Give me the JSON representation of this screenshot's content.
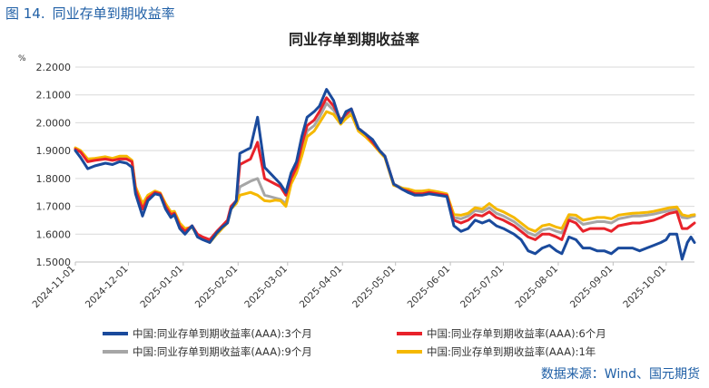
{
  "figure": {
    "number": "图 14.",
    "caption": "同业存单到期收益率"
  },
  "source": "数据来源：Wind、国元期货",
  "chart_data": {
    "type": "line",
    "title": "同业存单到期收益率",
    "unit": "%",
    "xlabel": "",
    "ylabel": "%",
    "ylim": [
      1.5,
      2.2
    ],
    "yticks": [
      "1.5000",
      "1.6000",
      "1.7000",
      "1.8000",
      "1.9000",
      "2.0000",
      "2.1000",
      "2.2000"
    ],
    "xlim": [
      "2024-11-01",
      "2025-10-17"
    ],
    "x_tick_labels": [
      "2024-11-01",
      "2024-12-01",
      "2025-01-01",
      "2025-02-01",
      "2025-03-01",
      "2025-04-01",
      "2025-05-01",
      "2025-06-01",
      "2025-07-01",
      "2025-08-01",
      "2025-09-01",
      "2025-10-01"
    ],
    "grid": true,
    "legend_position": "bottom",
    "series": [
      {
        "name": "中国:同业存单到期收益率(AAA):3个月",
        "color": "#1a4a9c",
        "x": [
          "2024-11-01",
          "2024-11-04",
          "2024-11-08",
          "2024-11-12",
          "2024-11-18",
          "2024-11-22",
          "2024-11-26",
          "2024-11-30",
          "2024-12-03",
          "2024-12-05",
          "2024-12-09",
          "2024-12-12",
          "2024-12-16",
          "2024-12-19",
          "2024-12-22",
          "2024-12-25",
          "2024-12-27",
          "2024-12-30",
          "2025-01-02",
          "2025-01-06",
          "2025-01-09",
          "2025-01-12",
          "2025-01-16",
          "2025-01-20",
          "2025-01-23",
          "2025-01-26",
          "2025-01-28",
          "2025-01-31",
          "2025-02-02",
          "2025-02-05",
          "2025-02-08",
          "2025-02-12",
          "2025-02-16",
          "2025-02-19",
          "2025-02-22",
          "2025-02-25",
          "2025-02-28",
          "2025-03-03",
          "2025-03-06",
          "2025-03-09",
          "2025-03-12",
          "2025-03-16",
          "2025-03-19",
          "2025-03-23",
          "2025-03-27",
          "2025-03-31",
          "2025-04-03",
          "2025-04-06",
          "2025-04-10",
          "2025-04-14",
          "2025-04-18",
          "2025-04-22",
          "2025-04-25",
          "2025-04-30",
          "2025-05-05",
          "2025-05-08",
          "2025-05-12",
          "2025-05-16",
          "2025-05-20",
          "2025-05-25",
          "2025-05-30",
          "2025-06-03",
          "2025-06-07",
          "2025-06-11",
          "2025-06-15",
          "2025-06-19",
          "2025-06-23",
          "2025-06-27",
          "2025-07-01",
          "2025-07-04",
          "2025-07-07",
          "2025-07-11",
          "2025-07-15",
          "2025-07-19",
          "2025-07-23",
          "2025-07-27",
          "2025-07-31",
          "2025-08-03",
          "2025-08-07",
          "2025-08-11",
          "2025-08-15",
          "2025-08-19",
          "2025-08-23",
          "2025-08-27",
          "2025-08-31",
          "2025-09-04",
          "2025-09-08",
          "2025-09-12",
          "2025-09-16",
          "2025-09-20",
          "2025-09-24",
          "2025-09-28",
          "2025-10-01",
          "2025-10-03",
          "2025-10-07",
          "2025-10-10",
          "2025-10-13",
          "2025-10-14",
          "2025-10-15",
          "2025-10-17"
        ],
        "values": [
          1.9,
          1.875,
          1.835,
          1.845,
          1.855,
          1.85,
          1.86,
          1.855,
          1.84,
          1.745,
          1.665,
          1.72,
          1.745,
          1.74,
          1.69,
          1.66,
          1.67,
          1.62,
          1.6,
          1.63,
          1.59,
          1.58,
          1.57,
          1.605,
          1.625,
          1.64,
          1.69,
          1.72,
          1.89,
          1.9,
          1.91,
          2.02,
          1.84,
          1.82,
          1.8,
          1.78,
          1.75,
          1.82,
          1.86,
          1.95,
          2.02,
          2.04,
          2.06,
          2.12,
          2.08,
          2.0,
          2.04,
          2.05,
          1.98,
          1.96,
          1.94,
          1.9,
          1.88,
          1.78,
          1.76,
          1.75,
          1.74,
          1.74,
          1.745,
          1.74,
          1.735,
          1.63,
          1.61,
          1.62,
          1.65,
          1.64,
          1.65,
          1.63,
          1.62,
          1.61,
          1.6,
          1.58,
          1.54,
          1.53,
          1.55,
          1.56,
          1.54,
          1.53,
          1.59,
          1.58,
          1.55,
          1.55,
          1.54,
          1.54,
          1.53,
          1.55,
          1.55,
          1.55,
          1.54,
          1.55,
          1.56,
          1.57,
          1.58,
          1.6,
          1.6,
          1.51,
          1.57,
          1.58,
          1.59,
          1.57
        ]
      },
      {
        "name": "中国:同业存单到期收益率(AAA):6个月",
        "color": "#e8222a",
        "x": [
          "2024-11-01",
          "2024-11-04",
          "2024-11-08",
          "2024-11-12",
          "2024-11-18",
          "2024-11-22",
          "2024-11-26",
          "2024-11-30",
          "2024-12-03",
          "2024-12-05",
          "2024-12-09",
          "2024-12-12",
          "2024-12-16",
          "2024-12-19",
          "2024-12-22",
          "2024-12-25",
          "2024-12-27",
          "2024-12-30",
          "2025-01-02",
          "2025-01-06",
          "2025-01-09",
          "2025-01-12",
          "2025-01-16",
          "2025-01-20",
          "2025-01-23",
          "2025-01-26",
          "2025-01-28",
          "2025-01-31",
          "2025-02-02",
          "2025-02-05",
          "2025-02-08",
          "2025-02-12",
          "2025-02-16",
          "2025-02-19",
          "2025-02-22",
          "2025-02-25",
          "2025-02-28",
          "2025-03-03",
          "2025-03-06",
          "2025-03-09",
          "2025-03-12",
          "2025-03-16",
          "2025-03-19",
          "2025-03-23",
          "2025-03-27",
          "2025-03-31",
          "2025-04-03",
          "2025-04-06",
          "2025-04-10",
          "2025-04-14",
          "2025-04-18",
          "2025-04-22",
          "2025-04-25",
          "2025-04-30",
          "2025-05-05",
          "2025-05-08",
          "2025-05-12",
          "2025-05-16",
          "2025-05-20",
          "2025-05-25",
          "2025-05-30",
          "2025-06-03",
          "2025-06-07",
          "2025-06-11",
          "2025-06-15",
          "2025-06-19",
          "2025-06-23",
          "2025-06-27",
          "2025-07-01",
          "2025-07-04",
          "2025-07-07",
          "2025-07-11",
          "2025-07-15",
          "2025-07-19",
          "2025-07-23",
          "2025-07-27",
          "2025-07-31",
          "2025-08-03",
          "2025-08-07",
          "2025-08-11",
          "2025-08-15",
          "2025-08-19",
          "2025-08-23",
          "2025-08-27",
          "2025-08-31",
          "2025-09-04",
          "2025-09-08",
          "2025-09-12",
          "2025-09-16",
          "2025-09-20",
          "2025-09-24",
          "2025-09-28",
          "2025-10-01",
          "2025-10-03",
          "2025-10-07",
          "2025-10-10",
          "2025-10-13",
          "2025-10-14",
          "2025-10-15",
          "2025-10-17"
        ],
        "values": [
          1.905,
          1.895,
          1.86,
          1.865,
          1.87,
          1.865,
          1.87,
          1.87,
          1.86,
          1.76,
          1.69,
          1.73,
          1.75,
          1.745,
          1.7,
          1.67,
          1.675,
          1.63,
          1.61,
          1.63,
          1.6,
          1.59,
          1.58,
          1.61,
          1.63,
          1.65,
          1.7,
          1.72,
          1.85,
          1.86,
          1.87,
          1.93,
          1.8,
          1.79,
          1.78,
          1.77,
          1.74,
          1.8,
          1.84,
          1.92,
          1.99,
          2.01,
          2.04,
          2.09,
          2.06,
          2.01,
          2.03,
          2.05,
          1.98,
          1.96,
          1.93,
          1.9,
          1.88,
          1.78,
          1.76,
          1.755,
          1.745,
          1.745,
          1.75,
          1.745,
          1.74,
          1.65,
          1.64,
          1.65,
          1.67,
          1.665,
          1.68,
          1.66,
          1.65,
          1.64,
          1.63,
          1.61,
          1.59,
          1.58,
          1.6,
          1.6,
          1.59,
          1.58,
          1.65,
          1.64,
          1.61,
          1.62,
          1.62,
          1.62,
          1.61,
          1.63,
          1.635,
          1.64,
          1.64,
          1.645,
          1.65,
          1.66,
          1.67,
          1.675,
          1.68,
          1.62,
          1.62,
          1.625,
          1.63,
          1.64
        ]
      },
      {
        "name": "中国:同业存单到期收益率(AAA):9个月",
        "color": "#a6a6a6",
        "x": [
          "2024-11-01",
          "2024-11-04",
          "2024-11-08",
          "2024-11-12",
          "2024-11-18",
          "2024-11-22",
          "2024-11-26",
          "2024-11-30",
          "2024-12-03",
          "2024-12-05",
          "2024-12-09",
          "2024-12-12",
          "2024-12-16",
          "2024-12-19",
          "2024-12-22",
          "2024-12-25",
          "2024-12-27",
          "2024-12-30",
          "2025-01-02",
          "2025-01-06",
          "2025-01-09",
          "2025-01-12",
          "2025-01-16",
          "2025-01-20",
          "2025-01-23",
          "2025-01-26",
          "2025-01-28",
          "2025-01-31",
          "2025-02-02",
          "2025-02-05",
          "2025-02-08",
          "2025-02-12",
          "2025-02-16",
          "2025-02-19",
          "2025-02-22",
          "2025-02-25",
          "2025-02-28",
          "2025-03-03",
          "2025-03-06",
          "2025-03-09",
          "2025-03-12",
          "2025-03-16",
          "2025-03-19",
          "2025-03-23",
          "2025-03-27",
          "2025-03-31",
          "2025-04-03",
          "2025-04-06",
          "2025-04-10",
          "2025-04-14",
          "2025-04-18",
          "2025-04-22",
          "2025-04-25",
          "2025-04-30",
          "2025-05-05",
          "2025-05-08",
          "2025-05-12",
          "2025-05-16",
          "2025-05-20",
          "2025-05-25",
          "2025-05-30",
          "2025-06-03",
          "2025-06-07",
          "2025-06-11",
          "2025-06-15",
          "2025-06-19",
          "2025-06-23",
          "2025-06-27",
          "2025-07-01",
          "2025-07-04",
          "2025-07-07",
          "2025-07-11",
          "2025-07-15",
          "2025-07-19",
          "2025-07-23",
          "2025-07-27",
          "2025-07-31",
          "2025-08-03",
          "2025-08-07",
          "2025-08-11",
          "2025-08-15",
          "2025-08-19",
          "2025-08-23",
          "2025-08-27",
          "2025-08-31",
          "2025-09-04",
          "2025-09-08",
          "2025-09-12",
          "2025-09-16",
          "2025-09-20",
          "2025-09-24",
          "2025-09-28",
          "2025-10-01",
          "2025-10-03",
          "2025-10-07",
          "2025-10-10",
          "2025-10-13",
          "2025-10-14",
          "2025-10-15",
          "2025-10-17"
        ],
        "values": [
          1.905,
          1.895,
          1.865,
          1.868,
          1.872,
          1.868,
          1.875,
          1.875,
          1.862,
          1.765,
          1.7,
          1.735,
          1.75,
          1.745,
          1.705,
          1.675,
          1.678,
          1.635,
          1.615,
          1.628,
          1.598,
          1.588,
          1.575,
          1.605,
          1.625,
          1.645,
          1.695,
          1.715,
          1.77,
          1.78,
          1.79,
          1.8,
          1.74,
          1.735,
          1.73,
          1.725,
          1.71,
          1.79,
          1.83,
          1.9,
          1.97,
          1.99,
          2.02,
          2.07,
          2.045,
          2.005,
          2.025,
          2.04,
          1.975,
          1.955,
          1.93,
          1.9,
          1.88,
          1.78,
          1.765,
          1.76,
          1.75,
          1.75,
          1.752,
          1.748,
          1.742,
          1.66,
          1.655,
          1.665,
          1.685,
          1.68,
          1.695,
          1.675,
          1.665,
          1.655,
          1.645,
          1.625,
          1.605,
          1.595,
          1.615,
          1.62,
          1.61,
          1.605,
          1.66,
          1.655,
          1.635,
          1.64,
          1.645,
          1.645,
          1.64,
          1.655,
          1.66,
          1.665,
          1.665,
          1.668,
          1.672,
          1.678,
          1.682,
          1.685,
          1.69,
          1.66,
          1.658,
          1.66,
          1.662,
          1.665
        ]
      },
      {
        "name": "中国:同业存单到期收益率(AAA):1年",
        "color": "#f5b800",
        "x": [
          "2024-11-01",
          "2024-11-04",
          "2024-11-08",
          "2024-11-12",
          "2024-11-18",
          "2024-11-22",
          "2024-11-26",
          "2024-11-30",
          "2024-12-03",
          "2024-12-05",
          "2024-12-09",
          "2024-12-12",
          "2024-12-16",
          "2024-12-19",
          "2024-12-22",
          "2024-12-25",
          "2024-12-27",
          "2024-12-30",
          "2025-01-02",
          "2025-01-06",
          "2025-01-09",
          "2025-01-12",
          "2025-01-16",
          "2025-01-20",
          "2025-01-23",
          "2025-01-26",
          "2025-01-28",
          "2025-01-31",
          "2025-02-02",
          "2025-02-05",
          "2025-02-08",
          "2025-02-12",
          "2025-02-16",
          "2025-02-19",
          "2025-02-22",
          "2025-02-25",
          "2025-02-28",
          "2025-03-03",
          "2025-03-06",
          "2025-03-09",
          "2025-03-12",
          "2025-03-16",
          "2025-03-19",
          "2025-03-23",
          "2025-03-27",
          "2025-03-31",
          "2025-04-03",
          "2025-04-06",
          "2025-04-10",
          "2025-04-14",
          "2025-04-18",
          "2025-04-22",
          "2025-04-25",
          "2025-04-30",
          "2025-05-05",
          "2025-05-08",
          "2025-05-12",
          "2025-05-16",
          "2025-05-20",
          "2025-05-25",
          "2025-05-30",
          "2025-06-03",
          "2025-06-07",
          "2025-06-11",
          "2025-06-15",
          "2025-06-19",
          "2025-06-23",
          "2025-06-27",
          "2025-07-01",
          "2025-07-04",
          "2025-07-07",
          "2025-07-11",
          "2025-07-15",
          "2025-07-19",
          "2025-07-23",
          "2025-07-27",
          "2025-07-31",
          "2025-08-03",
          "2025-08-07",
          "2025-08-11",
          "2025-08-15",
          "2025-08-19",
          "2025-08-23",
          "2025-08-27",
          "2025-08-31",
          "2025-09-04",
          "2025-09-08",
          "2025-09-12",
          "2025-09-16",
          "2025-09-20",
          "2025-09-24",
          "2025-09-28",
          "2025-10-01",
          "2025-10-03",
          "2025-10-07",
          "2025-10-10",
          "2025-10-13",
          "2025-10-14",
          "2025-10-15",
          "2025-10-17"
        ],
        "values": [
          1.91,
          1.9,
          1.87,
          1.872,
          1.878,
          1.872,
          1.88,
          1.88,
          1.865,
          1.77,
          1.71,
          1.74,
          1.755,
          1.748,
          1.71,
          1.68,
          1.682,
          1.64,
          1.62,
          1.625,
          1.595,
          1.585,
          1.57,
          1.6,
          1.62,
          1.64,
          1.69,
          1.71,
          1.74,
          1.745,
          1.75,
          1.74,
          1.72,
          1.718,
          1.722,
          1.72,
          1.7,
          1.78,
          1.82,
          1.88,
          1.95,
          1.97,
          2.0,
          2.04,
          2.03,
          1.995,
          2.015,
          2.03,
          1.97,
          1.95,
          1.925,
          1.895,
          1.875,
          1.775,
          1.765,
          1.762,
          1.755,
          1.755,
          1.758,
          1.752,
          1.745,
          1.67,
          1.668,
          1.675,
          1.695,
          1.69,
          1.71,
          1.69,
          1.68,
          1.67,
          1.66,
          1.64,
          1.62,
          1.61,
          1.63,
          1.635,
          1.625,
          1.62,
          1.67,
          1.668,
          1.65,
          1.655,
          1.66,
          1.66,
          1.655,
          1.668,
          1.672,
          1.675,
          1.676,
          1.678,
          1.682,
          1.688,
          1.692,
          1.695,
          1.698,
          1.67,
          1.665,
          1.665,
          1.668,
          1.67
        ]
      }
    ]
  }
}
